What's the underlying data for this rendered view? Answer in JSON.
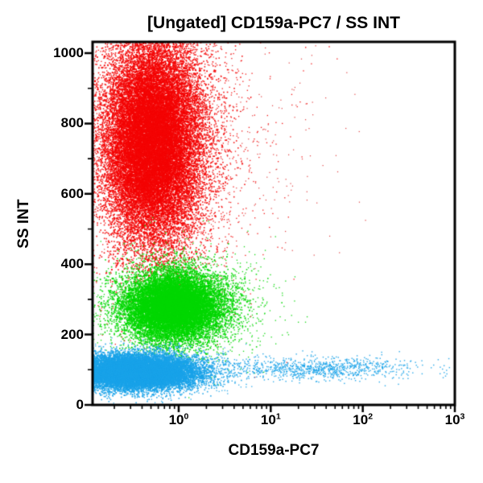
{
  "chart_data": {
    "type": "scatter",
    "title": "[Ungated] CD159a-PC7 / SS INT",
    "xlabel": "CD159a-PC7",
    "ylabel": "SS INT",
    "x_scale": "log10",
    "x_range": [
      0.116,
      1000
    ],
    "y_scale": "linear",
    "y_range": [
      0,
      1032
    ],
    "grid": false,
    "legend": false,
    "background_color": "#ffffff",
    "frame_color": "#000000",
    "y_major_ticks": [
      0,
      200,
      400,
      600,
      800,
      1000
    ],
    "y_minor_ticks": [
      100,
      300,
      500,
      700,
      900
    ],
    "x_major_ticks": [
      {
        "mantissa": "10",
        "exp": "0",
        "value": 1
      },
      {
        "mantissa": "10",
        "exp": "1",
        "value": 10
      },
      {
        "mantissa": "10",
        "exp": "2",
        "value": 100
      },
      {
        "mantissa": "10",
        "exp": "3",
        "value": 1000
      }
    ],
    "x_minor_subs": [
      2,
      3,
      4,
      5,
      6,
      7,
      8,
      9
    ],
    "populations": [
      {
        "name": "red-high-ss-core",
        "color": "#f40404",
        "count": 26000,
        "x_log_mean": -0.28,
        "x_log_sd": 0.26,
        "y_mean": 750,
        "y_sd": 145,
        "dot": 1.6
      },
      {
        "name": "red-high-ss-halo",
        "color": "#f40404",
        "count": 3500,
        "x_log_mean": -0.22,
        "x_log_sd": 0.5,
        "y_mean": 740,
        "y_sd": 200,
        "dot": 1.3
      },
      {
        "name": "red-right-scatter",
        "color": "#e03030",
        "count": 260,
        "x_log_mean": 0.45,
        "x_log_sd": 0.7,
        "y_mean": 720,
        "y_sd": 190,
        "dot": 1.2
      },
      {
        "name": "red-top-edge-pileup",
        "color": "#f40404",
        "count": 450,
        "x_log_mean": -0.2,
        "x_log_sd": 1.1,
        "y_mean": 1060,
        "y_sd": 20,
        "dot": 1.4
      },
      {
        "name": "green-mid-ss-core",
        "color": "#00d800",
        "count": 14000,
        "x_log_mean": -0.05,
        "x_log_sd": 0.27,
        "y_mean": 280,
        "y_sd": 50,
        "dot": 1.6
      },
      {
        "name": "green-mid-ss-halo",
        "color": "#00d800",
        "count": 1900,
        "x_log_mean": 0.0,
        "x_log_sd": 0.45,
        "y_mean": 278,
        "y_sd": 74,
        "dot": 1.3
      },
      {
        "name": "blue-low-ss-core",
        "color": "#19a3e9",
        "count": 15000,
        "x_log_mean": -0.46,
        "x_log_sd": 0.33,
        "y_mean": 94,
        "y_sd": 24,
        "dot": 1.6
      },
      {
        "name": "blue-low-ss-halo",
        "color": "#19a3e9",
        "count": 1500,
        "x_log_mean": -0.42,
        "x_log_sd": 0.5,
        "y_mean": 94,
        "y_sd": 33,
        "dot": 1.3
      },
      {
        "name": "blue-positive-tail",
        "color": "#19a3e9",
        "count": 950,
        "x_log_mean": 1.5,
        "x_log_sd": 0.55,
        "y_mean": 104,
        "y_sd": 17,
        "dot": 1.4
      }
    ]
  }
}
